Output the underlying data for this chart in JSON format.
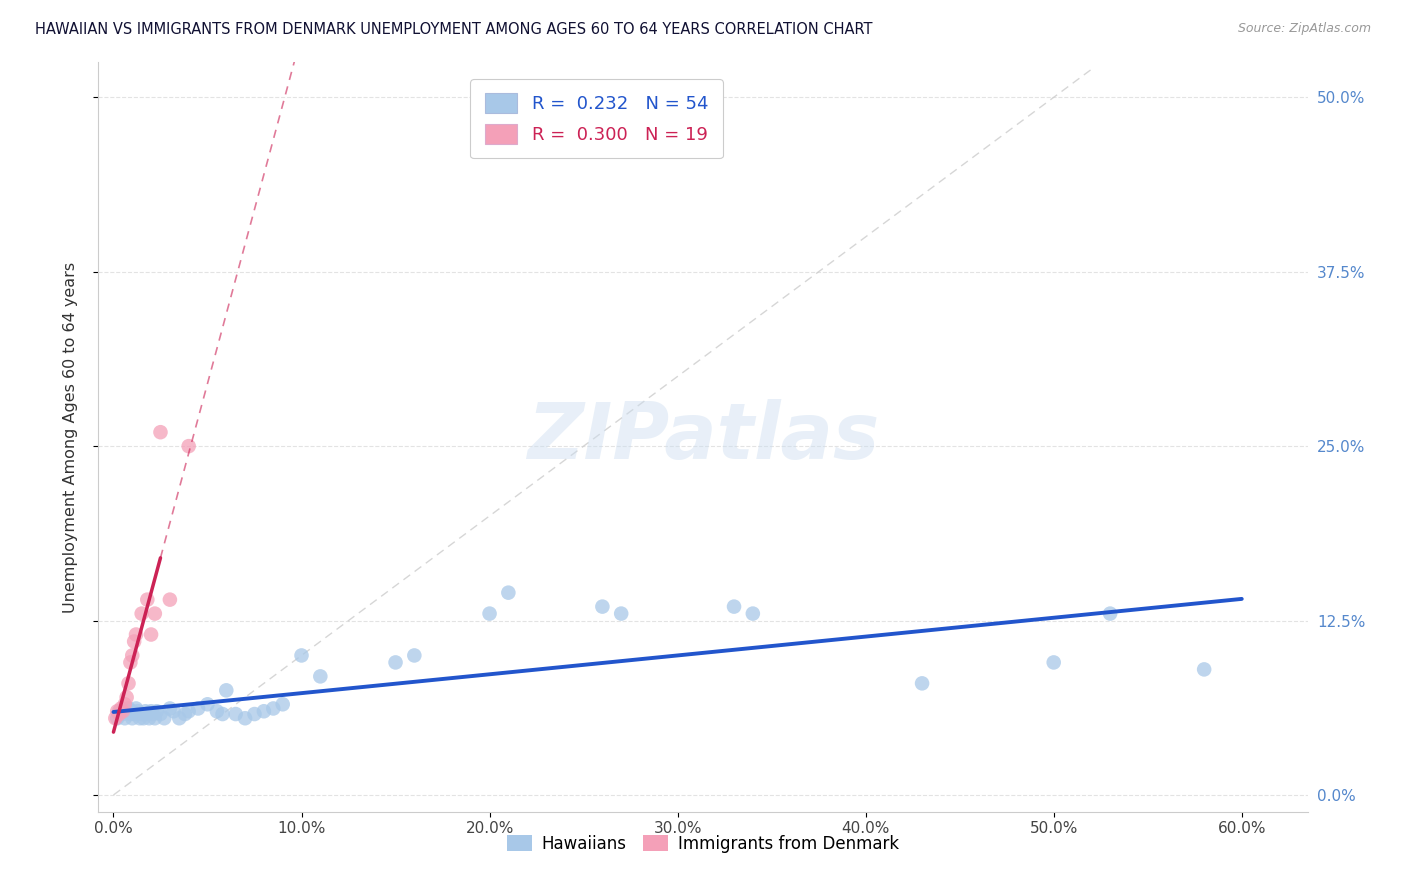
{
  "title": "HAWAIIAN VS IMMIGRANTS FROM DENMARK UNEMPLOYMENT AMONG AGES 60 TO 64 YEARS CORRELATION CHART",
  "source": "Source: ZipAtlas.com",
  "xlabel_ticks": [
    "0.0%",
    "10.0%",
    "20.0%",
    "30.0%",
    "40.0%",
    "50.0%",
    "60.0%"
  ],
  "xlabel_vals": [
    0.0,
    0.1,
    0.2,
    0.3,
    0.4,
    0.5,
    0.6
  ],
  "ylabel_ticks": [
    "0.0%",
    "12.5%",
    "25.0%",
    "37.5%",
    "50.0%"
  ],
  "ylabel_vals": [
    0.0,
    0.125,
    0.25,
    0.375,
    0.5
  ],
  "ylabel_label": "Unemployment Among Ages 60 to 64 years",
  "xlim": [
    -0.008,
    0.635
  ],
  "ylim": [
    -0.012,
    0.525
  ],
  "hawaiians_x": [
    0.002,
    0.003,
    0.005,
    0.006,
    0.007,
    0.008,
    0.009,
    0.01,
    0.01,
    0.011,
    0.012,
    0.013,
    0.014,
    0.015,
    0.016,
    0.017,
    0.018,
    0.019,
    0.02,
    0.021,
    0.022,
    0.023,
    0.025,
    0.027,
    0.03,
    0.032,
    0.035,
    0.038,
    0.04,
    0.045,
    0.05,
    0.055,
    0.058,
    0.06,
    0.065,
    0.07,
    0.075,
    0.08,
    0.085,
    0.09,
    0.1,
    0.11,
    0.15,
    0.16,
    0.2,
    0.21,
    0.26,
    0.27,
    0.33,
    0.34,
    0.43,
    0.5,
    0.53,
    0.58
  ],
  "hawaiians_y": [
    0.055,
    0.06,
    0.058,
    0.055,
    0.06,
    0.062,
    0.058,
    0.055,
    0.06,
    0.058,
    0.062,
    0.06,
    0.055,
    0.058,
    0.055,
    0.06,
    0.058,
    0.055,
    0.06,
    0.058,
    0.055,
    0.06,
    0.058,
    0.055,
    0.062,
    0.06,
    0.055,
    0.058,
    0.06,
    0.062,
    0.065,
    0.06,
    0.058,
    0.075,
    0.058,
    0.055,
    0.058,
    0.06,
    0.062,
    0.065,
    0.1,
    0.085,
    0.095,
    0.1,
    0.13,
    0.145,
    0.135,
    0.13,
    0.135,
    0.13,
    0.08,
    0.095,
    0.13,
    0.09
  ],
  "denmark_x": [
    0.001,
    0.002,
    0.003,
    0.004,
    0.005,
    0.006,
    0.007,
    0.008,
    0.009,
    0.01,
    0.011,
    0.012,
    0.015,
    0.018,
    0.02,
    0.022,
    0.025,
    0.03,
    0.04
  ],
  "denmark_y": [
    0.055,
    0.06,
    0.058,
    0.062,
    0.06,
    0.065,
    0.07,
    0.08,
    0.095,
    0.1,
    0.11,
    0.115,
    0.13,
    0.14,
    0.115,
    0.13,
    0.26,
    0.14,
    0.25
  ],
  "hawaiians_color": "#a8c8e8",
  "denmark_color": "#f4a0b8",
  "hawaiians_trend_color": "#2255cc",
  "denmark_trend_color": "#cc2255",
  "diagonal_color": "#cccccc",
  "r_hawaiians": 0.232,
  "n_hawaiians": 54,
  "r_denmark": 0.3,
  "n_denmark": 19,
  "marker_size": 110,
  "watermark_text": "ZIPatlas",
  "background_color": "#ffffff",
  "grid_color": "#dddddd",
  "tick_color": "#5588cc",
  "bottom_legend_labels": [
    "Hawaiians",
    "Immigrants from Denmark"
  ]
}
